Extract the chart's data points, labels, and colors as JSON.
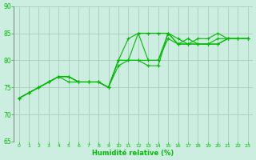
{
  "bg_color": "#cceee0",
  "grid_color": "#aaccbb",
  "line_color": "#00bb00",
  "marker_color": "#00bb00",
  "xlabel": "Humidité relative (%)",
  "xlabel_color": "#00bb00",
  "xlim": [
    -0.5,
    23.5
  ],
  "ylim": [
    65,
    90
  ],
  "yticks": [
    65,
    70,
    75,
    80,
    85,
    90
  ],
  "xticks": [
    0,
    1,
    2,
    3,
    4,
    5,
    6,
    7,
    8,
    9,
    10,
    11,
    12,
    13,
    14,
    15,
    16,
    17,
    18,
    19,
    20,
    21,
    22,
    23
  ],
  "series": [
    [
      73,
      74,
      75,
      76,
      77,
      77,
      76,
      76,
      76,
      75,
      79,
      80,
      85,
      80,
      80,
      84,
      83,
      84,
      83,
      83,
      84,
      84,
      84,
      84
    ],
    [
      73,
      74,
      75,
      76,
      77,
      77,
      76,
      76,
      76,
      75,
      80,
      80,
      80,
      80,
      80,
      85,
      83,
      83,
      83,
      83,
      83,
      84,
      84,
      84
    ],
    [
      73,
      74,
      75,
      76,
      77,
      77,
      76,
      76,
      76,
      75,
      80,
      84,
      85,
      85,
      85,
      85,
      84,
      83,
      83,
      83,
      83,
      84,
      84,
      84
    ],
    [
      73,
      74,
      75,
      76,
      77,
      76,
      76,
      76,
      76,
      75,
      80,
      80,
      80,
      79,
      79,
      85,
      83,
      83,
      84,
      84,
      85,
      84,
      84,
      84
    ]
  ]
}
